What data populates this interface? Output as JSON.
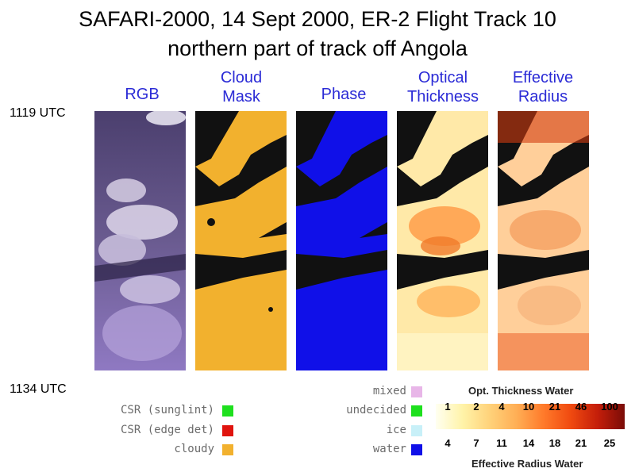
{
  "title": {
    "line1": "SAFARI-2000, 14 Sept 2000, ER-2 Flight Track 10",
    "line2": "northern part of track off Angola"
  },
  "columns": [
    {
      "key": "rgb",
      "label": "RGB"
    },
    {
      "key": "cloud_mask",
      "label": "Cloud\nMask"
    },
    {
      "key": "phase",
      "label": "Phase"
    },
    {
      "key": "optical_thickness",
      "label": "Optical\nThickness"
    },
    {
      "key": "effective_radius",
      "label": "Effective\nRadius"
    }
  ],
  "times": {
    "start": "1119 UTC",
    "end": "1134 UTC"
  },
  "cloud_mask_legend": [
    {
      "label": "CSR (sunglint)",
      "color": "#1ee01e"
    },
    {
      "label": "CSR (edge det)",
      "color": "#e0140e"
    },
    {
      "label": "cloudy",
      "color": "#f2b12e"
    }
  ],
  "phase_legend": [
    {
      "label": "mixed",
      "color": "#e8b6e8"
    },
    {
      "label": "undecided",
      "color": "#1ee01e"
    },
    {
      "label": "ice",
      "color": "#c8f0f8"
    },
    {
      "label": "water",
      "color": "#1010e8"
    }
  ],
  "colorbar": {
    "top_title": "Opt. Thickness Water",
    "bottom_title": "Effective Radius Water",
    "top_ticks": [
      "1",
      "2",
      "4",
      "10",
      "21",
      "46",
      "100"
    ],
    "bottom_ticks": [
      "4",
      "7",
      "11",
      "14",
      "18",
      "21",
      "25"
    ],
    "colors": [
      "#fffff0",
      "#fff3a8",
      "#ffd27a",
      "#ffae55",
      "#ff7a2a",
      "#f04a10",
      "#c41e0a",
      "#7a0c08"
    ]
  }
}
